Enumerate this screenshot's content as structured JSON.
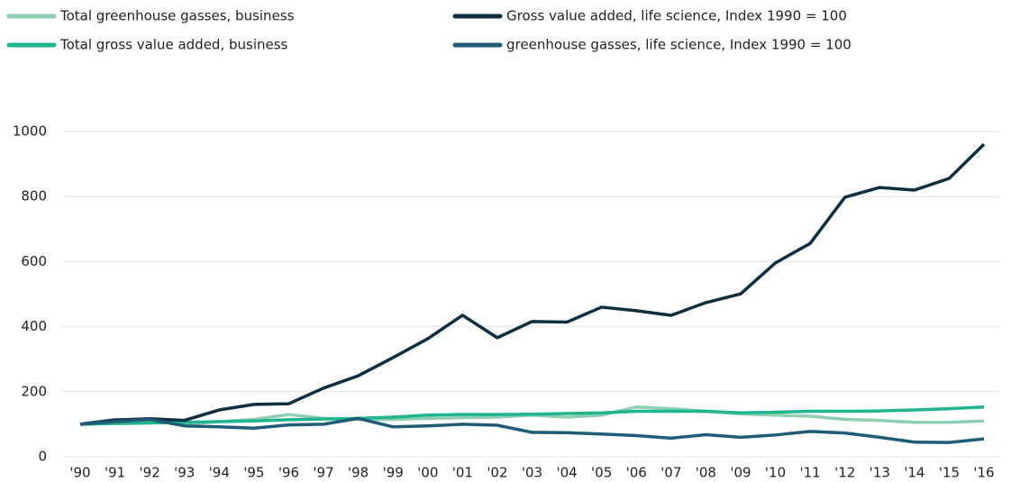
{
  "chart_data": {
    "type": "line",
    "categories": [
      "'90",
      "'91",
      "'92",
      "'93",
      "'94",
      "'95",
      "'96",
      "'97",
      "'98",
      "'99",
      "'00",
      "'01",
      "'02",
      "'03",
      "'04",
      "'05",
      "'06",
      "'07",
      "'08",
      "'09",
      "'10",
      "'11",
      "'12",
      "'13",
      "'14",
      "'15",
      "'16"
    ],
    "series": [
      {
        "name": "Total greenhouse gasses, business",
        "color": "#8dcfb0",
        "values": [
          100,
          115,
          112,
          100,
          108,
          115,
          130,
          118,
          115,
          115,
          118,
          120,
          122,
          128,
          122,
          128,
          153,
          148,
          140,
          132,
          128,
          125,
          115,
          112,
          106,
          106,
          110
        ]
      },
      {
        "name": "Total gross value added, business",
        "color": "#1fb58f",
        "values": [
          100,
          102,
          104,
          106,
          108,
          110,
          114,
          116,
          118,
          122,
          128,
          130,
          130,
          131,
          133,
          135,
          140,
          140,
          140,
          135,
          137,
          140,
          140,
          141,
          144,
          148,
          153
        ]
      },
      {
        "name": "Gross value added, life science, Index 1990 = 100",
        "color": "#0d2f3f",
        "values": [
          100,
          113,
          117,
          112,
          144,
          161,
          163,
          211,
          249,
          305,
          363,
          435,
          366,
          416,
          414,
          460,
          449,
          435,
          474,
          501,
          596,
          656,
          798,
          828,
          820,
          856,
          961
        ]
      },
      {
        "name": "greenhouse gasses, life science, Index 1990 = 100",
        "color": "#1f5c78",
        "values": [
          100,
          108,
          115,
          95,
          92,
          88,
          98,
          100,
          118,
          92,
          95,
          100,
          97,
          75,
          74,
          70,
          65,
          57,
          68,
          60,
          67,
          78,
          73,
          60,
          45,
          44,
          55
        ]
      }
    ],
    "ylim": [
      0,
      1000
    ],
    "yticks": [
      0,
      200,
      400,
      600,
      800,
      1000
    ],
    "grid": true
  }
}
